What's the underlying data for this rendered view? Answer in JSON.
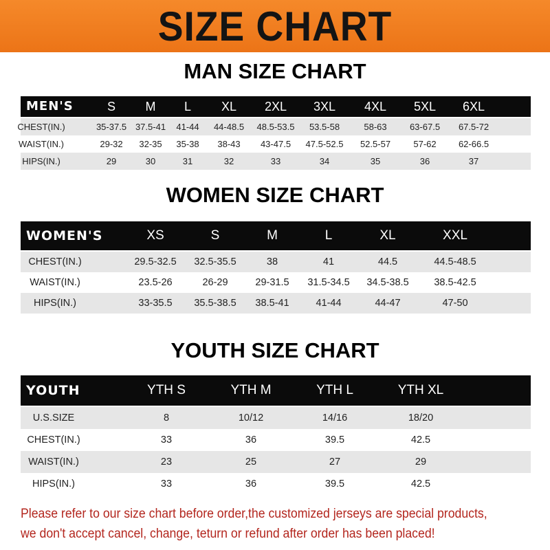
{
  "banner_title": "SIZE CHART",
  "men": {
    "title": "MAN SIZE CHART",
    "header": [
      "MEN'S",
      "S",
      "M",
      "L",
      "XL",
      "2XL",
      "3XL",
      "4XL",
      "5XL",
      "6XL"
    ],
    "rows": [
      [
        "CHEST(IN.)",
        "35-37.5",
        "37.5-41",
        "41-44",
        "44-48.5",
        "48.5-53.5",
        "53.5-58",
        "58-63",
        "63-67.5",
        "67.5-72"
      ],
      [
        "WAIST(IN.)",
        "29-32",
        "32-35",
        "35-38",
        "38-43",
        "43-47.5",
        "47.5-52.5",
        "52.5-57",
        "57-62",
        "62-66.5"
      ],
      [
        "HIPS(IN.)",
        "29",
        "30",
        "31",
        "32",
        "33",
        "34",
        "35",
        "36",
        "37"
      ]
    ]
  },
  "women": {
    "title": "WOMEN SIZE CHART",
    "header": [
      "WOMEN'S",
      "XS",
      "S",
      "M",
      "L",
      "XL",
      "XXL"
    ],
    "rows": [
      [
        "CHEST(IN.)",
        "29.5-32.5",
        "32.5-35.5",
        "38",
        "41",
        "44.5",
        "44.5-48.5"
      ],
      [
        "WAIST(IN.)",
        "23.5-26",
        "26-29",
        "29-31.5",
        "31.5-34.5",
        "34.5-38.5",
        "38.5-42.5"
      ],
      [
        "HIPS(IN.)",
        "33-35.5",
        "35.5-38.5",
        "38.5-41",
        "41-44",
        "44-47",
        "47-50"
      ]
    ]
  },
  "youth": {
    "title": "YOUTH SIZE CHART",
    "header": [
      "YOUTH",
      "YTH S",
      "YTH M",
      "YTH L",
      "YTH XL"
    ],
    "rows": [
      [
        "U.S.SIZE",
        "8",
        "10/12",
        "14/16",
        "18/20"
      ],
      [
        "CHEST(IN.)",
        "33",
        "36",
        "39.5",
        "42.5"
      ],
      [
        "WAIST(IN.)",
        "23",
        "25",
        "27",
        "29"
      ],
      [
        "HIPS(IN.)",
        "33",
        "36",
        "39.5",
        "42.5"
      ]
    ]
  },
  "note": {
    "line1": "Please refer to our size chart before order,the customized jerseys are special products,",
    "line2": "we don't accept cancel, change, teturn or refund after order has been placed!"
  },
  "colors": {
    "banner": "#f07c1c",
    "header_row": "#0b0b0b",
    "stripe": "#e6e6e6",
    "note": "#b3261e"
  }
}
